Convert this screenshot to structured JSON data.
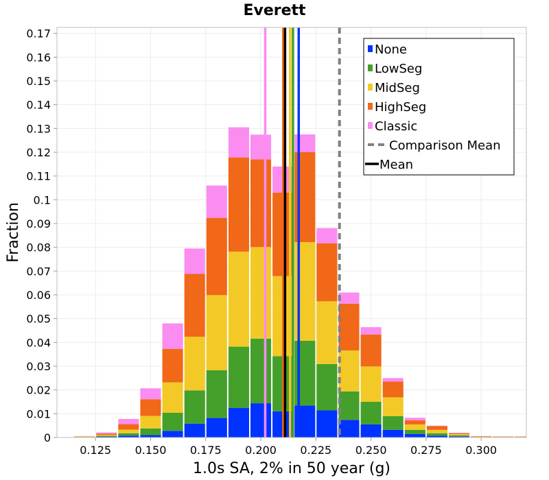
{
  "chart_data": {
    "type": "bar",
    "stacked": true,
    "title": "Everett",
    "xlabel": "1.0s SA, 2% in 50 year (g)",
    "ylabel": "Fraction",
    "xlim": [
      0.1075,
      0.3205
    ],
    "ylim": [
      0,
      0.1725
    ],
    "x_ticks": [
      "0.125",
      "0.150",
      "0.175",
      "0.200",
      "0.225",
      "0.250",
      "0.275",
      "0.300"
    ],
    "y_ticks": [
      "0",
      "0.01",
      "0.02",
      "0.03",
      "0.04",
      "0.05",
      "0.06",
      "0.07",
      "0.08",
      "0.09",
      "0.1",
      "0.11",
      "0.12",
      "0.13",
      "0.14",
      "0.15",
      "0.16",
      "0.17"
    ],
    "grid": true,
    "bin_width": 0.01,
    "bin_centers": [
      0.12,
      0.13,
      0.14,
      0.15,
      0.16,
      0.17,
      0.18,
      0.19,
      0.2,
      0.21,
      0.22,
      0.23,
      0.24,
      0.25,
      0.26,
      0.27,
      0.28,
      0.29,
      0.3,
      0.31,
      0.32
    ],
    "series": [
      {
        "name": "None",
        "color": "#0033ff",
        "values": [
          0.0001,
          0.0003,
          0.0008,
          0.001,
          0.0028,
          0.0058,
          0.0082,
          0.0124,
          0.0144,
          0.011,
          0.0134,
          0.0114,
          0.0074,
          0.0055,
          0.0032,
          0.0015,
          0.0008,
          0.0004,
          0.0001,
          0.0001,
          0.0001
        ]
      },
      {
        "name": "LowSeg",
        "color": "#44a02a",
        "values": [
          0.0001,
          0.0004,
          0.001,
          0.0028,
          0.0076,
          0.014,
          0.0201,
          0.0258,
          0.0272,
          0.0232,
          0.0273,
          0.0195,
          0.012,
          0.0095,
          0.0058,
          0.0017,
          0.001,
          0.0005,
          0.0001,
          0.0001,
          0.0001
        ]
      },
      {
        "name": "MidSeg",
        "color": "#f2c926",
        "values": [
          0.0002,
          0.0004,
          0.0015,
          0.0053,
          0.0128,
          0.0226,
          0.0316,
          0.04,
          0.0385,
          0.0337,
          0.0415,
          0.0264,
          0.0172,
          0.0149,
          0.0079,
          0.0023,
          0.0014,
          0.0005,
          0.0001,
          0.0001,
          0.0001
        ]
      },
      {
        "name": "HighSeg",
        "color": "#f06818",
        "values": [
          0.0001,
          0.0005,
          0.0023,
          0.007,
          0.0141,
          0.0264,
          0.0325,
          0.0396,
          0.0369,
          0.0351,
          0.0378,
          0.0244,
          0.0197,
          0.0134,
          0.0066,
          0.0017,
          0.0016,
          0.0004,
          0.0002,
          0.0001,
          0.0001
        ]
      },
      {
        "name": "Classic",
        "color": "#fb8cf0",
        "values": [
          0.0001,
          0.0005,
          0.0022,
          0.0046,
          0.0107,
          0.0107,
          0.0136,
          0.0127,
          0.0104,
          0.011,
          0.0075,
          0.0064,
          0.0047,
          0.0031,
          0.0015,
          0.0011,
          0.0002,
          0.0002,
          0.0001,
          0.0001,
          0.0001
        ]
      }
    ],
    "vlines": [
      {
        "name": "Classic mean",
        "x": 0.202,
        "color": "#fb8cf0",
        "style": "solid"
      },
      {
        "name": "MidSeg mean",
        "x": 0.2133,
        "color": "#f2c926",
        "style": "solid"
      },
      {
        "name": "LowSeg mean",
        "x": 0.2146,
        "color": "#44a02a",
        "style": "solid"
      },
      {
        "name": "None mean",
        "x": 0.2172,
        "color": "#0033ff",
        "style": "solid"
      },
      {
        "name": "HighSeg mean",
        "x": 0.2102,
        "color": "#f06818",
        "style": "solid"
      },
      {
        "name": "Mean",
        "x": 0.211,
        "color": "#000000",
        "style": "solid"
      },
      {
        "name": "Comparison Mean",
        "x": 0.2357,
        "color": "#808080",
        "style": "dashed"
      }
    ],
    "legend": {
      "position": "top-right",
      "entries": [
        {
          "label": "None",
          "color": "#0033ff",
          "kind": "box"
        },
        {
          "label": "LowSeg",
          "color": "#44a02a",
          "kind": "box"
        },
        {
          "label": "MidSeg",
          "color": "#f2c926",
          "kind": "box"
        },
        {
          "label": "HighSeg",
          "color": "#f06818",
          "kind": "box"
        },
        {
          "label": "Classic",
          "color": "#fb8cf0",
          "kind": "box"
        },
        {
          "label": "Comparison Mean",
          "color": "#808080",
          "kind": "dashed"
        },
        {
          "label": "Mean",
          "color": "#000000",
          "kind": "line"
        }
      ]
    }
  }
}
